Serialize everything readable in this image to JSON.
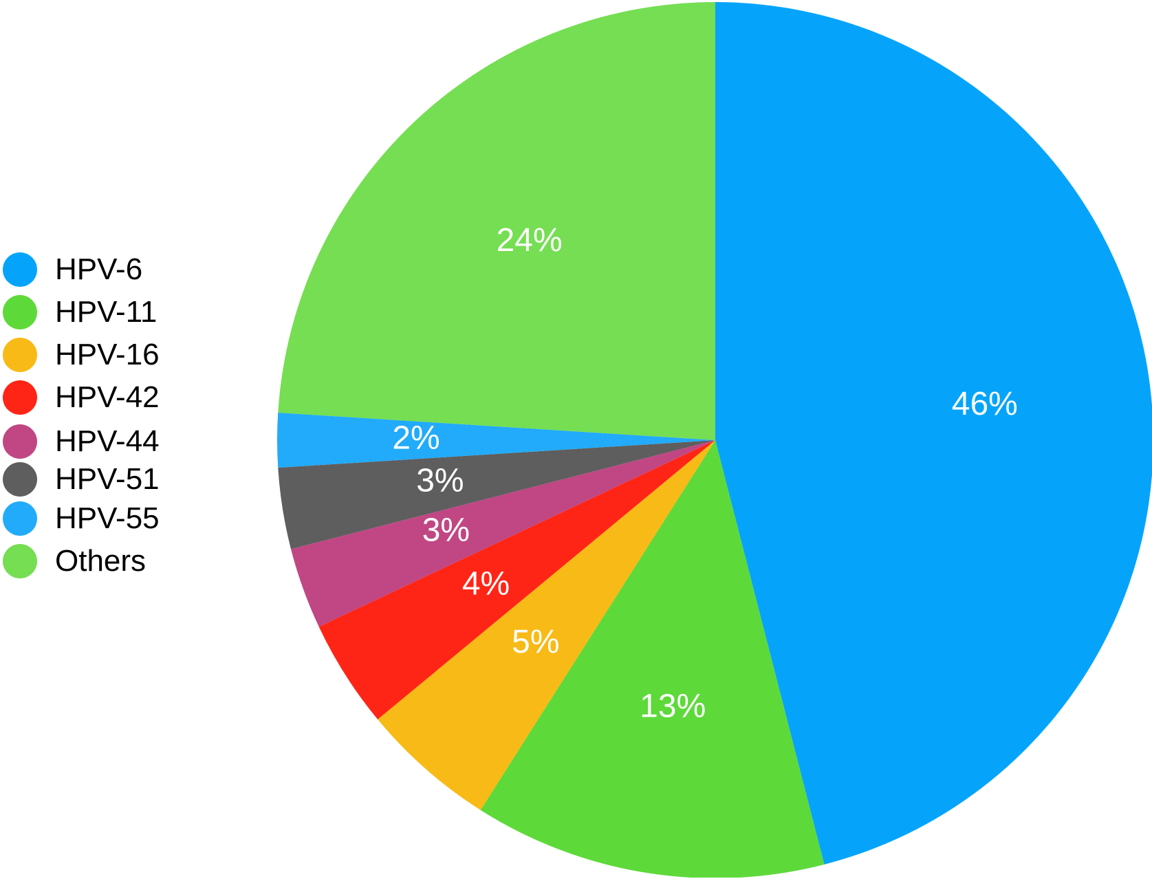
{
  "chart_data": {
    "type": "pie",
    "title": "",
    "start": "12 o'clock",
    "direction": "clockwise",
    "slices": [
      {
        "name": "HPV-6",
        "value": 46,
        "label": "46%",
        "color": "#05A4FA"
      },
      {
        "name": "HPV-11",
        "value": 13,
        "label": "13%",
        "color": "#5ED93A"
      },
      {
        "name": "HPV-16",
        "value": 5,
        "label": "5%",
        "color": "#F8BA16"
      },
      {
        "name": "HPV-42",
        "value": 4,
        "label": "4%",
        "color": "#FF2516"
      },
      {
        "name": "HPV-44",
        "value": 3,
        "label": "3%",
        "color": "#C04784"
      },
      {
        "name": "HPV-51",
        "value": 3,
        "label": "3%",
        "color": "#5E5E5E"
      },
      {
        "name": "HPV-55",
        "value": 2,
        "label": "2%",
        "color": "#22ABFA"
      },
      {
        "name": "Others",
        "value": 24,
        "label": "24%",
        "color": "#75DE52"
      }
    ],
    "legend": {
      "placement": "left",
      "entries": [
        {
          "name": "HPV-6",
          "color": "#05A4FA"
        },
        {
          "name": "HPV-11",
          "color": "#5ED93A"
        },
        {
          "name": "HPV-16",
          "color": "#F8BA16"
        },
        {
          "name": "HPV-42",
          "color": "#FF2516"
        },
        {
          "name": "HPV-44",
          "color": "#C04784"
        },
        {
          "name": "HPV-51",
          "color": "#5E5E5E"
        },
        {
          "name": "HPV-55",
          "color": "#22ABFA"
        },
        {
          "name": "Others",
          "color": "#75DE52"
        }
      ]
    }
  }
}
